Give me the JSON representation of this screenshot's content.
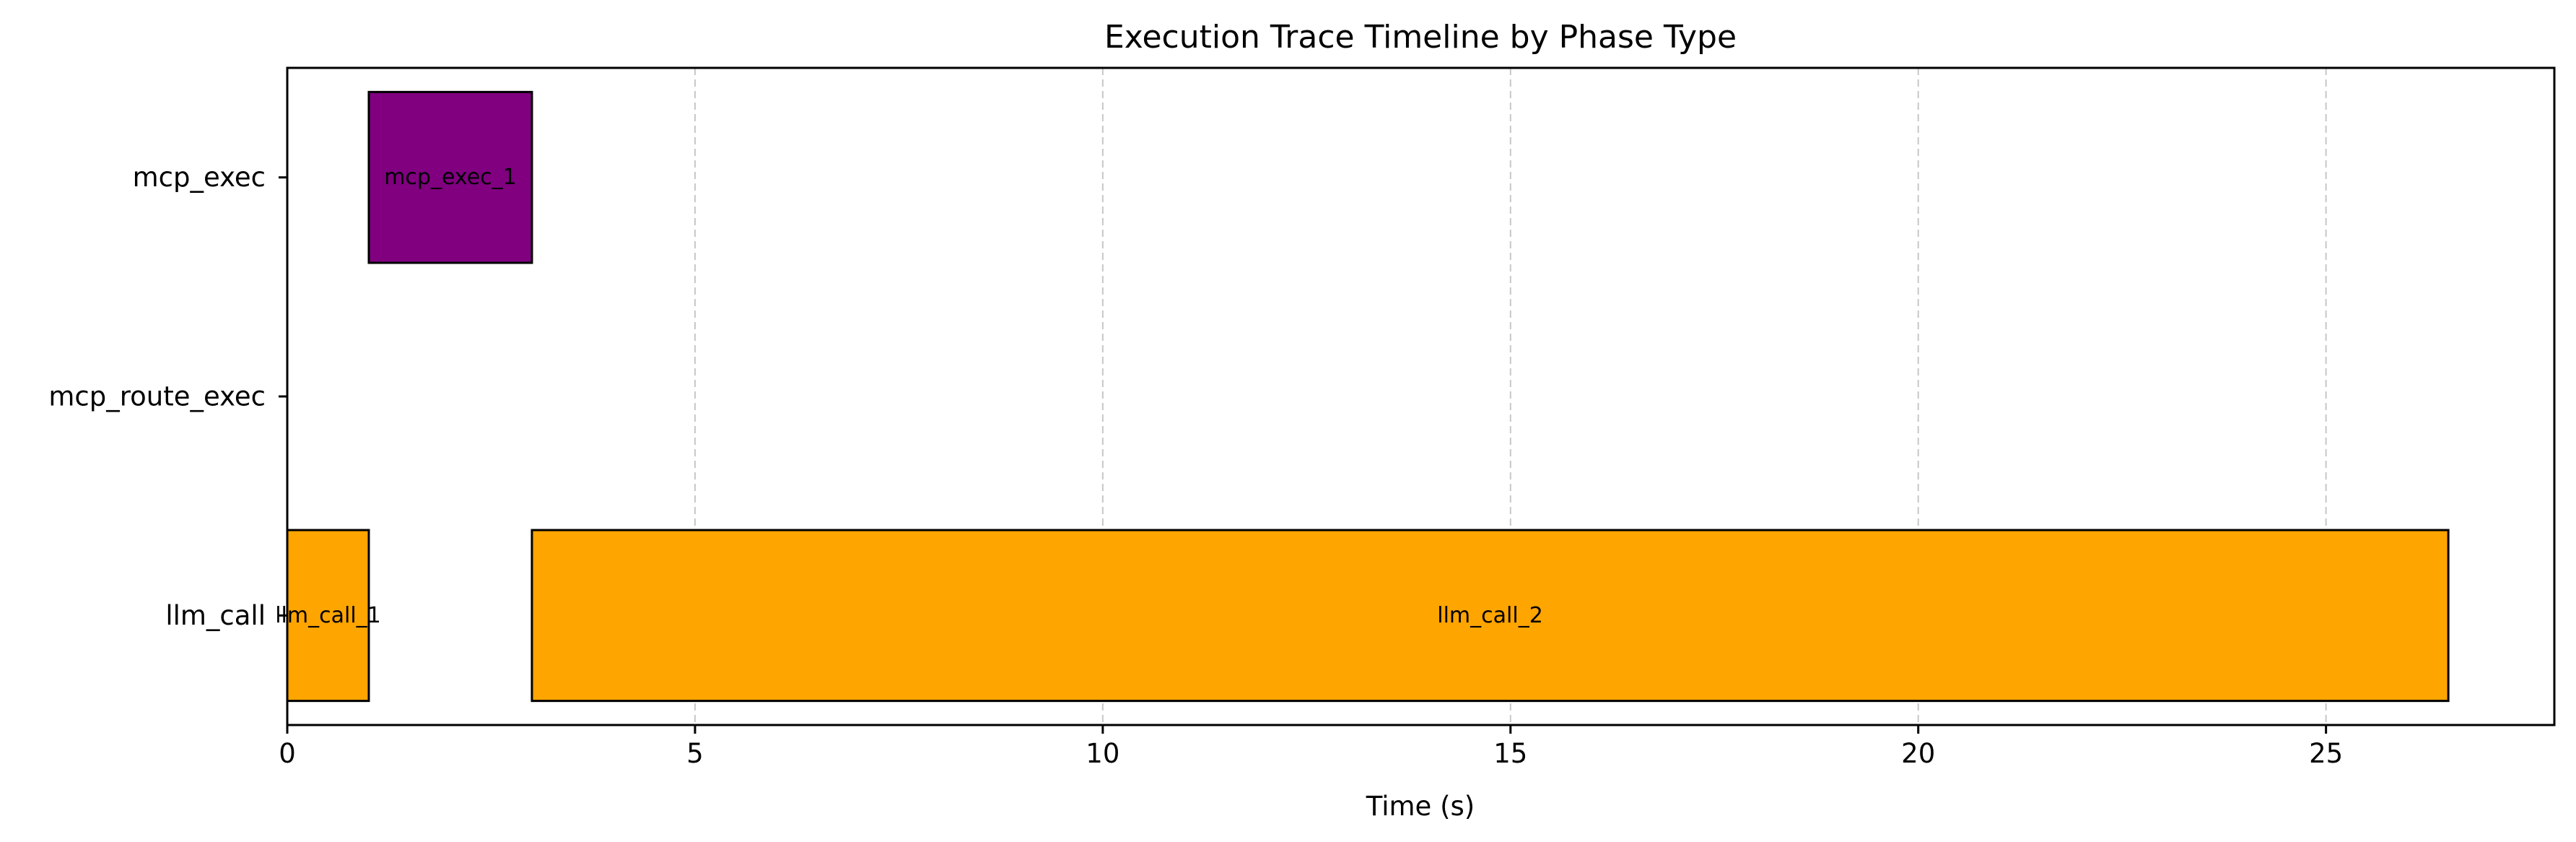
{
  "chart_data": {
    "type": "bar",
    "orientation": "horizontal",
    "title": "Execution Trace Timeline by Phase Type",
    "xlabel": "Time (s)",
    "ylabel": "",
    "xlim": [
      0,
      27.8
    ],
    "xticks": [
      0,
      5,
      10,
      15,
      20,
      25
    ],
    "categories": [
      "llm_call",
      "mcp_route_exec",
      "mcp_exec"
    ],
    "grid": {
      "x": true,
      "y": false,
      "style": "dashed"
    },
    "series": [
      {
        "label": "llm_call_1",
        "category": "llm_call",
        "start": 0,
        "end": 1.0,
        "color": "#FFA500"
      },
      {
        "label": "mcp_exec_1",
        "category": "mcp_exec",
        "start": 1.0,
        "end": 3.0,
        "color": "#800080"
      },
      {
        "label": "llm_call_2",
        "category": "llm_call",
        "start": 3.0,
        "end": 26.5,
        "color": "#FFA500"
      }
    ]
  }
}
